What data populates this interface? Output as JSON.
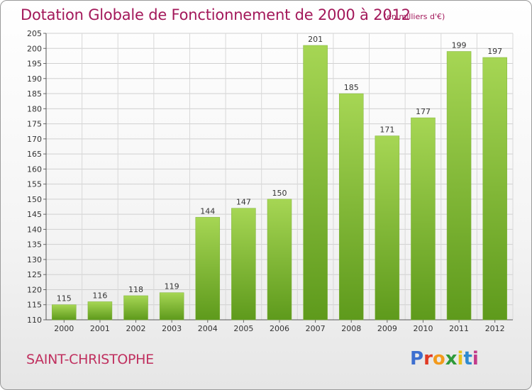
{
  "header": {
    "title": "Dotation Globale de Fonctionnement de 2000 à 2012",
    "unit": "(en milliers d'€)"
  },
  "footer": {
    "place": "SAINT-CHRISTOPHE",
    "logo_text": "Proxiti",
    "logo_colors": [
      "#3d6fd0",
      "#e03a24",
      "#f39a1c",
      "#2f9a3a",
      "#e8c21c",
      "#2f8ad0",
      "#c23a8a"
    ]
  },
  "chart_data": {
    "type": "bar",
    "categories": [
      "2000",
      "2001",
      "2002",
      "2003",
      "2004",
      "2005",
      "2006",
      "2007",
      "2008",
      "2009",
      "2010",
      "2011",
      "2012"
    ],
    "values": [
      115,
      116,
      118,
      119,
      144,
      147,
      150,
      201,
      185,
      171,
      177,
      199,
      197
    ],
    "ylim": [
      110,
      205
    ],
    "yticks": [
      110,
      115,
      120,
      125,
      130,
      135,
      140,
      145,
      150,
      155,
      160,
      165,
      170,
      175,
      180,
      185,
      190,
      195,
      200,
      205
    ],
    "grid": true,
    "bar_color_top": "#a6d654",
    "bar_color_bottom": "#5e9a1c"
  }
}
